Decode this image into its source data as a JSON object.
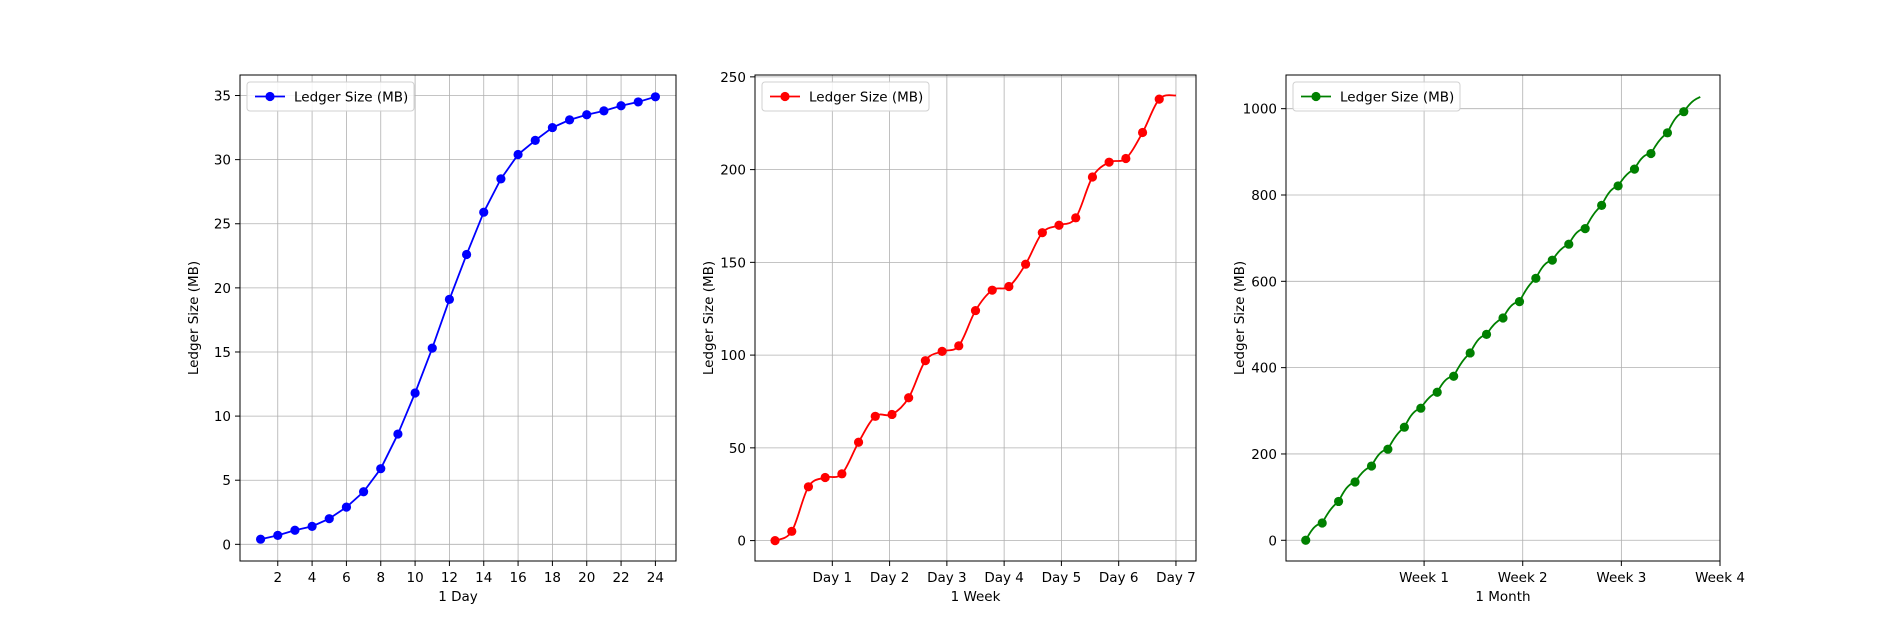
{
  "chart_data": [
    {
      "type": "line",
      "xlabel": "1 Day",
      "ylabel": "Ledger Size (MB)",
      "xlim": [
        -0.2,
        25.2
      ],
      "ylim": [
        -1.3,
        36.6
      ],
      "xticks": [
        2,
        4,
        6,
        8,
        10,
        12,
        14,
        16,
        18,
        20,
        22,
        24
      ],
      "xtick_labels": [
        "2",
        "4",
        "6",
        "8",
        "10",
        "12",
        "14",
        "16",
        "18",
        "20",
        "22",
        "24"
      ],
      "yticks": [
        0,
        5,
        10,
        15,
        20,
        25,
        30,
        35
      ],
      "ytick_labels": [
        "0",
        "5",
        "10",
        "15",
        "20",
        "25",
        "30",
        "35"
      ],
      "grid": true,
      "legend_position": "top-left",
      "series": [
        {
          "name": "Ledger Size (MB)",
          "color": "#0000ff",
          "marker": "circle",
          "line_style": "straight",
          "x": [
            1,
            2,
            3,
            4,
            5,
            6,
            7,
            8,
            9,
            10,
            11,
            12,
            13,
            14,
            15,
            16,
            17,
            18,
            19,
            20,
            21,
            22,
            23,
            24
          ],
          "values": [
            0.4,
            0.7,
            1.1,
            1.4,
            2.0,
            2.9,
            4.1,
            5.9,
            8.6,
            11.8,
            15.3,
            19.1,
            22.6,
            25.9,
            28.5,
            30.4,
            31.5,
            32.5,
            33.1,
            33.5,
            33.8,
            34.2,
            34.5,
            34.9
          ]
        }
      ]
    },
    {
      "type": "line",
      "xlabel": "1 Week",
      "ylabel": "Ledger Size (MB)",
      "xlim": [
        -0.35,
        7.35
      ],
      "ylim": [
        -11,
        251
      ],
      "xticks": [
        1,
        2,
        3,
        4,
        5,
        6,
        7
      ],
      "xtick_labels": [
        "Day 1",
        "Day 2",
        "Day 3",
        "Day 4",
        "Day 5",
        "Day 6",
        "Day 7"
      ],
      "yticks": [
        0,
        50,
        100,
        150,
        200,
        250
      ],
      "ytick_labels": [
        "0",
        "50",
        "100",
        "150",
        "200",
        "250"
      ],
      "grid": true,
      "legend_position": "top-left",
      "series": [
        {
          "name": "Ledger Size (MB)",
          "color": "#ff0000",
          "marker": "circle",
          "line_style": "smooth",
          "x": [
            0,
            0.292,
            0.583,
            0.875,
            1.167,
            1.458,
            1.75,
            2.042,
            2.333,
            2.625,
            2.917,
            3.208,
            3.5,
            3.792,
            4.083,
            4.375,
            4.667,
            4.958,
            5.25,
            5.542,
            5.833,
            6.125,
            6.417,
            6.708
          ],
          "values": [
            0,
            5,
            29,
            34,
            36,
            53,
            67,
            68,
            77,
            97,
            102,
            105,
            124,
            135,
            137,
            149,
            166,
            170,
            174,
            196,
            204,
            206,
            220,
            238
          ],
          "line_end": [
            7.0,
            240
          ]
        }
      ]
    },
    {
      "type": "line",
      "xlabel": "1 Month",
      "ylabel": "Ledger Size (MB)",
      "xlim": [
        -0.2,
        4.2
      ],
      "ylim": [
        -48,
        1078
      ],
      "xticks": [
        1.2,
        2.2,
        3.2,
        4.2
      ],
      "xtick_labels": [
        "Week 1",
        "Week 2",
        "Week 3",
        "Week 4"
      ],
      "yticks": [
        0,
        200,
        400,
        600,
        800,
        1000
      ],
      "ytick_labels": [
        "0",
        "200",
        "400",
        "600",
        "800",
        "1000"
      ],
      "grid": true,
      "legend_position": "top-left",
      "series": [
        {
          "name": "Ledger Size (MB)",
          "color": "#008000",
          "marker": "circle",
          "line_style": "wavy",
          "x": [
            0,
            0.167,
            0.333,
            0.5,
            0.667,
            0.833,
            1.0,
            1.167,
            1.333,
            1.5,
            1.667,
            1.833,
            2.0,
            2.167,
            2.333,
            2.5,
            2.667,
            2.833,
            3.0,
            3.167,
            3.333,
            3.5,
            3.667,
            3.833
          ],
          "values": [
            0,
            40,
            90,
            135,
            172,
            211,
            262,
            306,
            343,
            380,
            434,
            477,
            515,
            553,
            607,
            649,
            686,
            722,
            776,
            821,
            860,
            896,
            944,
            993
          ],
          "line_end": [
            4.0,
            1027
          ]
        }
      ]
    }
  ]
}
